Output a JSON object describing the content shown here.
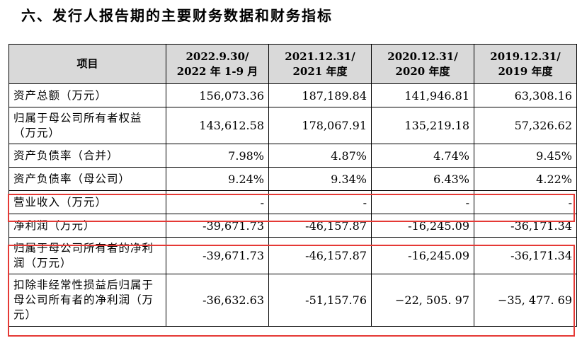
{
  "heading": "六、发行人报告期的主要财务数据和财务指标",
  "table": {
    "headers": [
      {
        "line1": "项目",
        "line2": ""
      },
      {
        "line1": "2022.9.30/",
        "line2": "2022 年 1-9 月"
      },
      {
        "line1": "2021.12.31/",
        "line2": "2021 年度"
      },
      {
        "line1": "2020.12.31/",
        "line2": "2020 年度"
      },
      {
        "line1": "2019.12.31/",
        "line2": "2019 年度"
      }
    ],
    "rows": [
      {
        "label": "资产总额（万元）",
        "values": [
          "156,073.36",
          "187,189.84",
          "141,946.81",
          "63,308.16"
        ]
      },
      {
        "label": "归属于母公司所有者权益（万元）",
        "values": [
          "143,612.58",
          "178,067.91",
          "135,219.18",
          "57,326.62"
        ]
      },
      {
        "label": "资产负债率（合并）",
        "values": [
          "7.98%",
          "4.87%",
          "4.74%",
          "9.45%"
        ]
      },
      {
        "label": "资产负债率（母公司）",
        "values": [
          "9.24%",
          "9.34%",
          "6.43%",
          "4.22%"
        ]
      },
      {
        "label": "营业收入（万元）",
        "values": [
          "-",
          "-",
          "-",
          "-"
        ]
      },
      {
        "label": "净利润（万元）",
        "values": [
          "-39,671.73",
          "-46,157.87",
          "-16,245.09",
          "-36,171.34"
        ]
      },
      {
        "label": "归属于母公司所有者的净利润（万元）",
        "values": [
          "-39,671.73",
          "-46,157.87",
          "-16,245.09",
          "-36,171.34"
        ]
      },
      {
        "label": "扣除非经常性损益后归属于母公司所有者的净利润（万元）",
        "values": [
          "-36,632.63",
          "-51,157.76",
          "−22, 505. 97",
          "−35, 477. 69"
        ]
      }
    ]
  },
  "highlight_color": "#e53935"
}
